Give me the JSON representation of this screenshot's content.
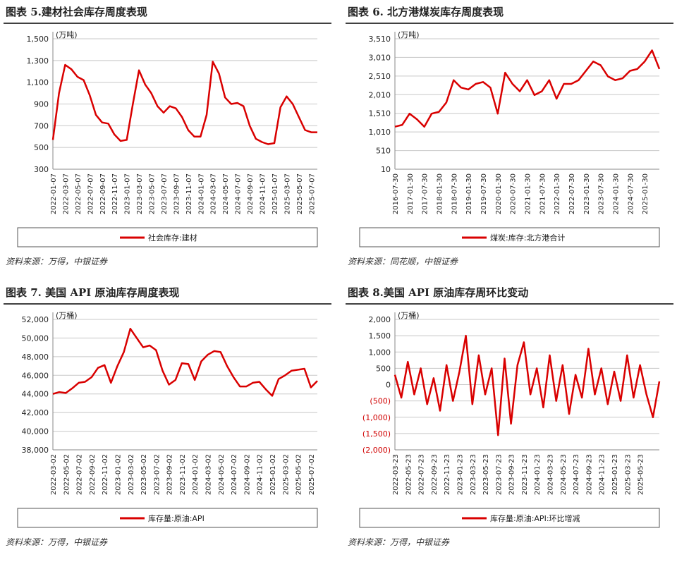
{
  "chart_data": [
    {
      "type": "line",
      "title": "图表 5.建材社会库存周度表现",
      "unit": "(万吨)",
      "source": "资料来源：万得，中银证券",
      "categories": [
        "2022-01-07",
        null,
        "2022-03-07",
        null,
        "2022-05-07",
        null,
        "2022-07-07",
        null,
        "2022-09-07",
        null,
        "2022-11-07",
        null,
        "2023-01-07",
        null,
        "2023-03-07",
        null,
        "2023-05-07",
        null,
        "2023-07-07",
        null,
        "2023-09-07",
        null,
        "2023-11-07",
        null,
        "2024-01-07",
        null,
        "2024-03-07",
        null,
        "2024-05-07",
        null,
        "2024-07-07",
        null,
        "2024-09-07",
        null,
        "2024-11-07",
        null,
        "2025-01-07",
        null,
        "2025-03-07",
        null,
        "2025-05-07",
        null,
        "2025-07-07",
        null
      ],
      "series": [
        {
          "name": "社会库存:建材",
          "color": "#d90000",
          "values": [
            570,
            1000,
            1260,
            1220,
            1150,
            1120,
            980,
            800,
            730,
            720,
            620,
            560,
            570,
            900,
            1210,
            1080,
            1000,
            880,
            820,
            880,
            860,
            780,
            660,
            600,
            600,
            800,
            1290,
            1180,
            960,
            900,
            910,
            880,
            700,
            580,
            550,
            530,
            540,
            870,
            970,
            900,
            780,
            660,
            640,
            640
          ]
        }
      ],
      "ylim": [
        300,
        1500
      ],
      "yticks": [
        300,
        500,
        700,
        900,
        {
          "value": 1100,
          "label": "1,100"
        },
        {
          "value": 1300,
          "label": "1,300"
        },
        {
          "value": 1500,
          "label": "1,500"
        }
      ],
      "grid": true
    },
    {
      "type": "line",
      "title": "图表 6. 北方港煤炭库存周度表现",
      "unit": "(万吨)",
      "source": "资料来源：同花顺，中银证券",
      "categories": [
        "2016-07-30",
        null,
        "2017-01-30",
        null,
        "2017-07-30",
        null,
        "2018-01-30",
        null,
        "2018-07-30",
        null,
        "2019-01-30",
        null,
        "2019-07-30",
        null,
        "2020-01-30",
        null,
        "2020-07-30",
        null,
        "2021-01-30",
        null,
        "2021-07-30",
        null,
        "2022-01-30",
        null,
        "2022-07-30",
        null,
        "2023-01-30",
        null,
        "2023-07-30",
        null,
        "2024-01-30",
        null,
        "2024-07-30",
        null,
        "2025-01-30",
        null,
        null
      ],
      "series": [
        {
          "name": "煤炭:库存:北方港合计",
          "color": "#d90000",
          "values": [
            1150,
            1200,
            1500,
            1350,
            1150,
            1500,
            1550,
            1800,
            2400,
            2200,
            2150,
            2300,
            2350,
            2200,
            1500,
            2600,
            2300,
            2100,
            2400,
            2000,
            2100,
            2400,
            1900,
            2300,
            2300,
            2400,
            2650,
            2900,
            2800,
            2500,
            2400,
            2450,
            2650,
            2700,
            2900,
            3200,
            2700
          ]
        }
      ],
      "ylim": [
        10,
        3510
      ],
      "yticks": [
        10,
        510,
        {
          "value": 1010,
          "label": "1,010"
        },
        {
          "value": 1510,
          "label": "1,510"
        },
        {
          "value": 2010,
          "label": "2,010"
        },
        {
          "value": 2510,
          "label": "2,510"
        },
        {
          "value": 3010,
          "label": "3,010"
        },
        {
          "value": 3510,
          "label": "3,510"
        }
      ],
      "grid": true
    },
    {
      "type": "line",
      "title": "图表 7. 美国 API 原油库存周度表现",
      "unit": "(万桶)",
      "source": "资料来源：万得，中银证券",
      "categories": [
        "2022-03-02",
        null,
        "2022-05-02",
        null,
        "2022-07-02",
        null,
        "2022-09-02",
        null,
        "2022-11-02",
        null,
        "2023-01-02",
        null,
        "2023-03-02",
        null,
        "2023-05-02",
        null,
        "2023-07-02",
        null,
        "2023-09-02",
        null,
        "2023-11-02",
        null,
        "2024-01-02",
        null,
        "2024-03-02",
        null,
        "2024-05-02",
        null,
        "2024-07-02",
        null,
        "2024-09-02",
        null,
        "2024-11-02",
        null,
        "2025-01-02",
        null,
        "2025-03-02",
        null,
        "2025-05-02",
        null,
        "2025-07-02",
        null
      ],
      "series": [
        {
          "name": "库存量:原油:API",
          "color": "#d90000",
          "values": [
            44000,
            44200,
            44100,
            44600,
            45200,
            45300,
            45800,
            46800,
            47100,
            45200,
            47000,
            48500,
            51000,
            50000,
            49000,
            49200,
            48700,
            46500,
            45000,
            45500,
            47300,
            47200,
            45500,
            47500,
            48200,
            48600,
            48500,
            47000,
            45800,
            44800,
            44800,
            45200,
            45300,
            44500,
            43800,
            45600,
            46000,
            46500,
            46600,
            46700,
            44700,
            45400
          ]
        }
      ],
      "ylim": [
        38000,
        52000
      ],
      "yticks": [
        {
          "value": 38000,
          "label": "38,000"
        },
        {
          "value": 40000,
          "label": "40,000"
        },
        {
          "value": 42000,
          "label": "42,000"
        },
        {
          "value": 44000,
          "label": "44,000"
        },
        {
          "value": 46000,
          "label": "46,000"
        },
        {
          "value": 48000,
          "label": "48,000"
        },
        {
          "value": 50000,
          "label": "50,000"
        },
        {
          "value": 52000,
          "label": "52,000"
        }
      ],
      "grid": true
    },
    {
      "type": "line",
      "title": "图表 8.美国 API 原油库存周环比变动",
      "unit": "(万桶)",
      "source": "资料来源：万得，中银证券",
      "categories": [
        "2022-03-23",
        null,
        "2022-05-23",
        null,
        "2022-07-23",
        null,
        "2022-09-23",
        null,
        "2022-11-23",
        null,
        "2023-01-23",
        null,
        "2023-03-23",
        null,
        "2023-05-23",
        null,
        "2023-07-23",
        null,
        "2023-09-23",
        null,
        "2023-11-23",
        null,
        "2024-01-23",
        null,
        "2024-03-23",
        null,
        "2024-05-23",
        null,
        "2024-07-23",
        null,
        "2024-09-23",
        null,
        "2024-11-23",
        null,
        "2025-01-23",
        null,
        "2025-03-23",
        null,
        "2025-05-23",
        null,
        null,
        null
      ],
      "series": [
        {
          "name": "库存量:原油:API:环比增减",
          "color": "#d90000",
          "values": [
            300,
            -400,
            700,
            -300,
            500,
            -600,
            200,
            -800,
            600,
            -500,
            400,
            1500,
            -600,
            900,
            -300,
            500,
            -1550,
            800,
            -1200,
            600,
            1300,
            -300,
            500,
            -700,
            900,
            -500,
            600,
            -900,
            300,
            -400,
            1100,
            -300,
            500,
            -600,
            400,
            -500,
            900,
            -400,
            600,
            -300,
            -1000,
            100
          ]
        }
      ],
      "ylim": [
        -2000,
        2000
      ],
      "yticks": [
        {
          "value": -2000,
          "label": "(2,000)"
        },
        {
          "value": -1500,
          "label": "(1,500)"
        },
        {
          "value": -1000,
          "label": "(1,000)"
        },
        {
          "value": -500,
          "label": "(500)"
        },
        0,
        500,
        {
          "value": 1000,
          "label": "1,000"
        },
        {
          "value": 1500,
          "label": "1,500"
        },
        {
          "value": 2000,
          "label": "2,000"
        }
      ],
      "grid": true
    }
  ]
}
